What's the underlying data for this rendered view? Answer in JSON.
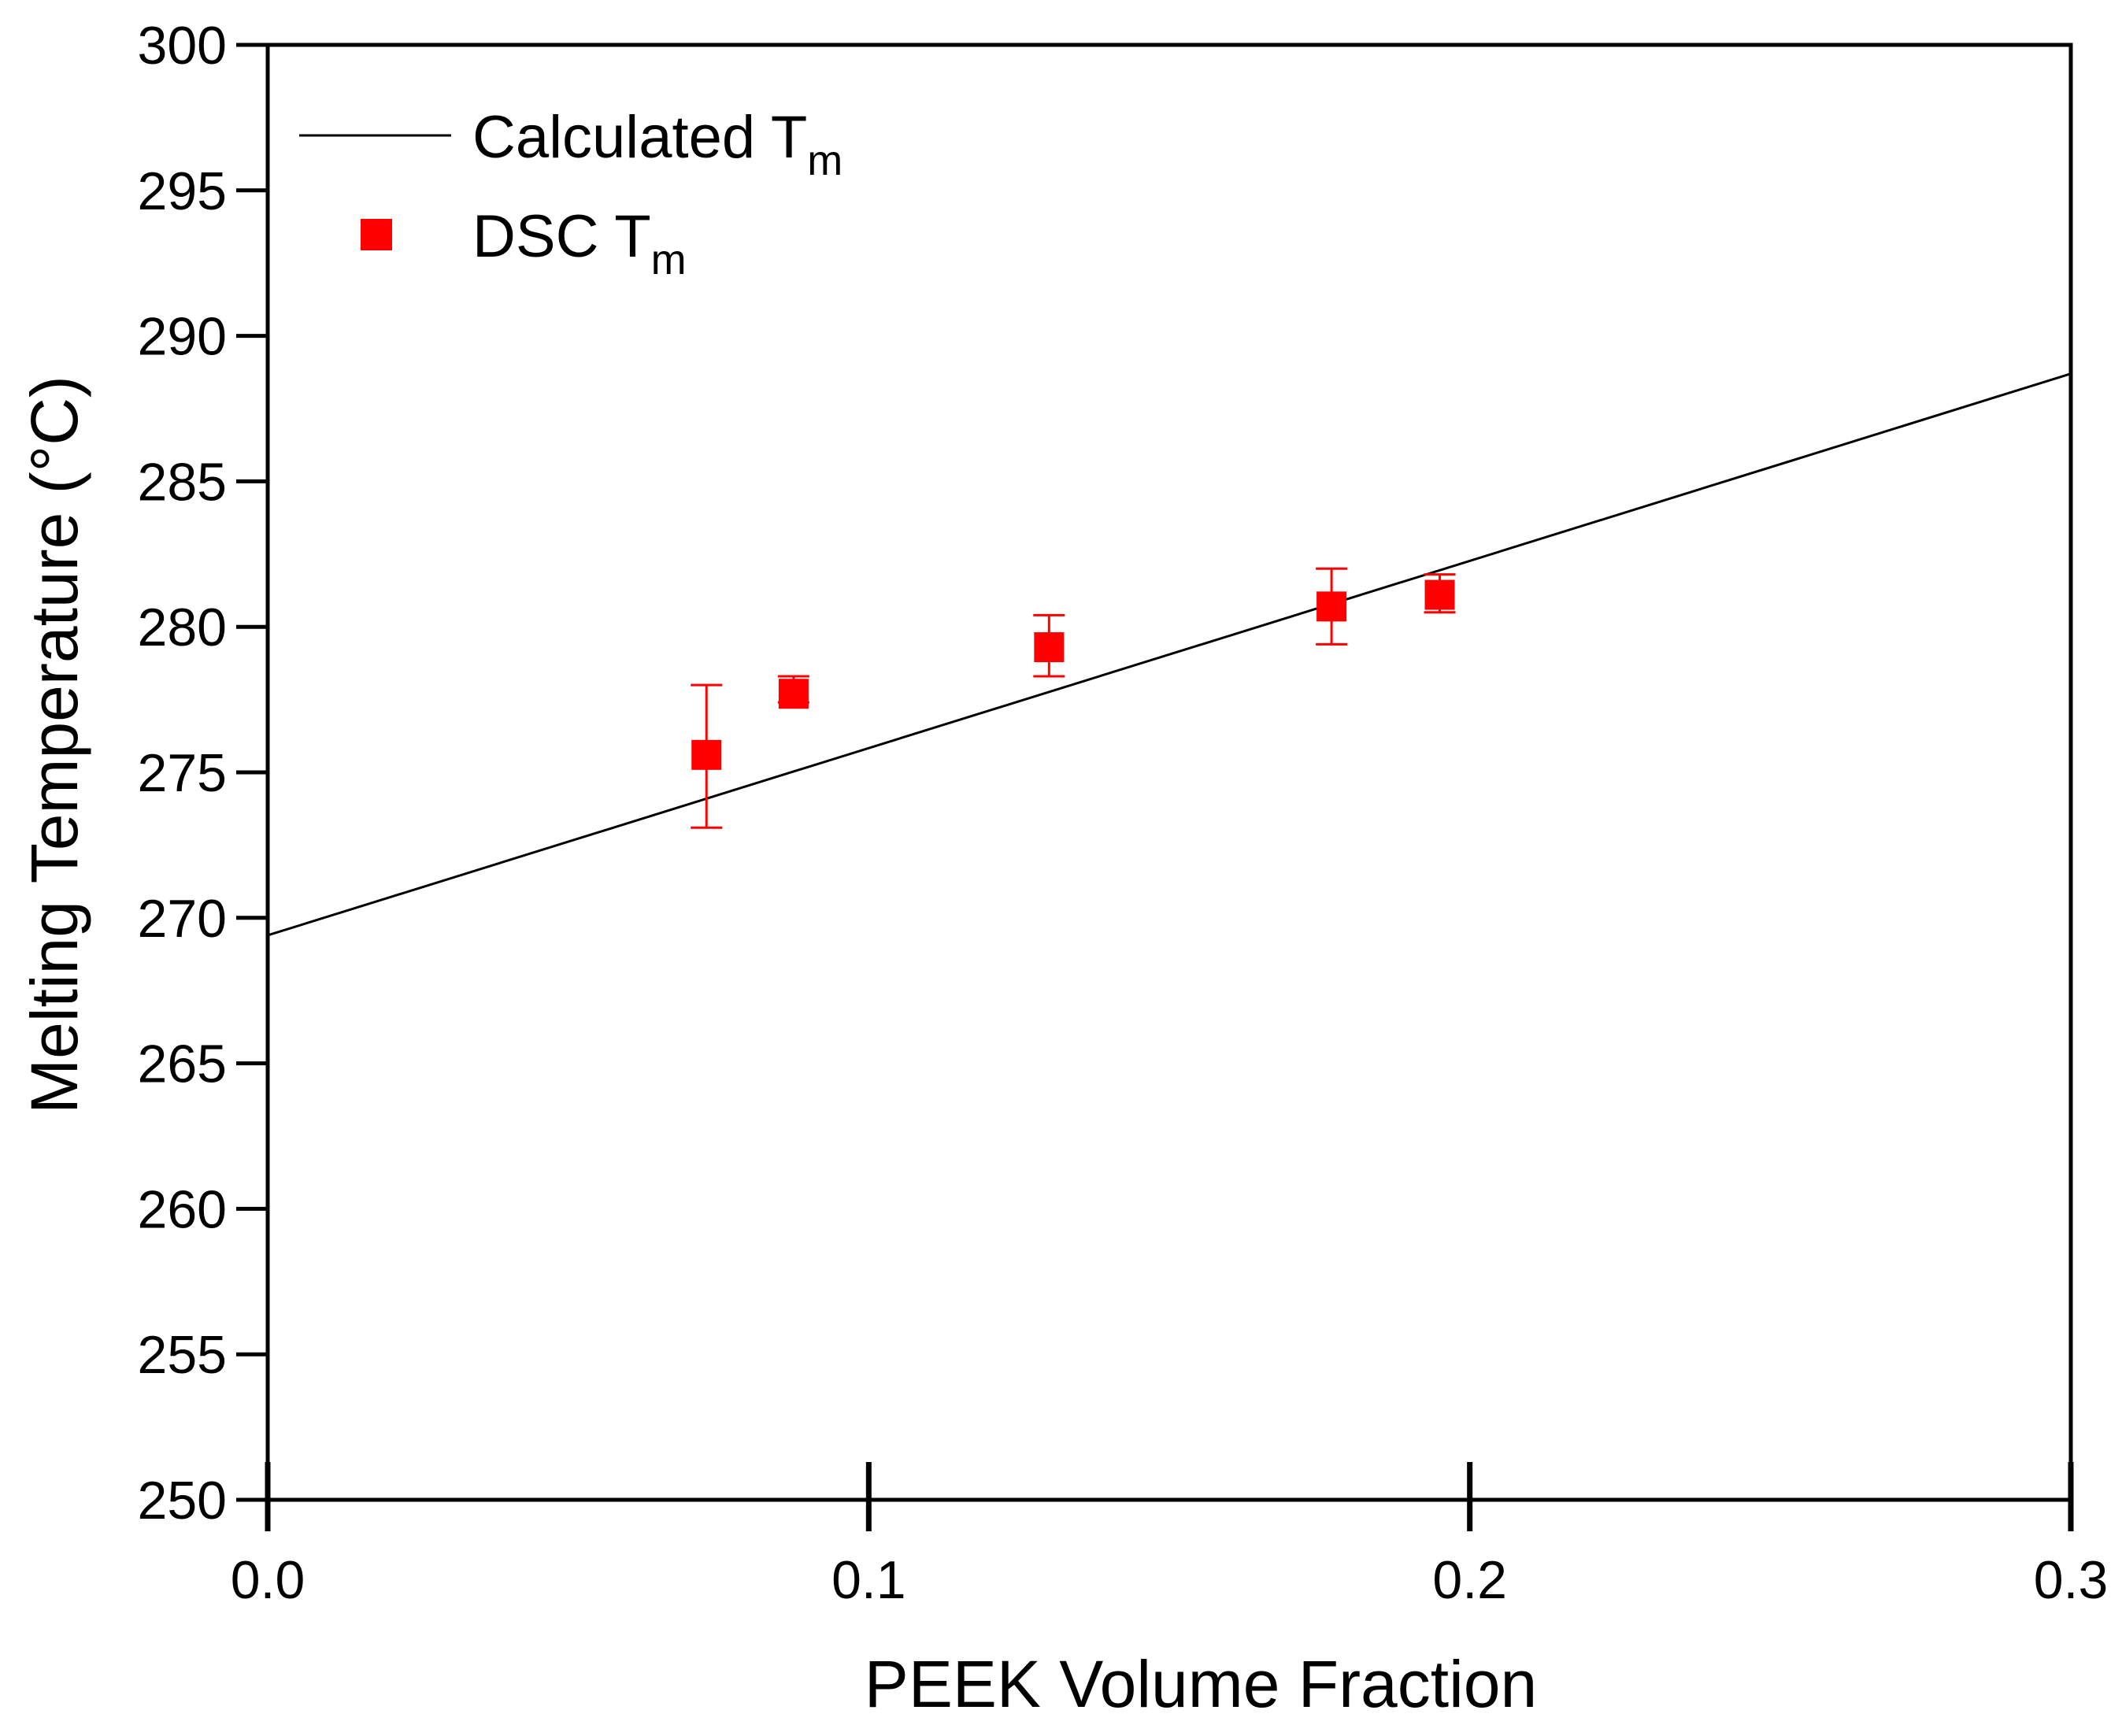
{
  "chart_data": {
    "type": "scatter",
    "xlabel": "PEEK Volume Fraction",
    "ylabel": "Melting Temperature (°C)",
    "xlim": [
      0.0,
      0.3
    ],
    "ylim": [
      250,
      300
    ],
    "x_ticks": [
      0.0,
      0.1,
      0.2,
      0.3
    ],
    "x_tick_labels": [
      "0.0",
      "0.1",
      "0.2",
      "0.3"
    ],
    "y_ticks": [
      250,
      255,
      260,
      265,
      270,
      275,
      280,
      285,
      290,
      295,
      300
    ],
    "y_tick_labels": [
      "250",
      "255",
      "260",
      "265",
      "270",
      "275",
      "280",
      "285",
      "290",
      "295",
      "300"
    ],
    "grid": false,
    "legend_position": "top-left",
    "series": [
      {
        "name": "Calculated T",
        "name_sub": "m",
        "kind": "line",
        "color": "#000000",
        "x": [
          0.0,
          0.3
        ],
        "y": [
          269.4,
          288.7
        ]
      },
      {
        "name": "DSC T",
        "name_sub": "m",
        "kind": "scatter",
        "marker": "square",
        "color": "#ff0000",
        "x": [
          0.073,
          0.0875,
          0.13,
          0.177,
          0.195
        ],
        "y": [
          275.6,
          277.7,
          279.3,
          280.7,
          281.1
        ],
        "error_low": [
          273.1,
          277.4,
          278.3,
          279.4,
          280.5
        ],
        "error_high": [
          278.0,
          278.3,
          280.4,
          282.0,
          281.8
        ]
      }
    ]
  }
}
